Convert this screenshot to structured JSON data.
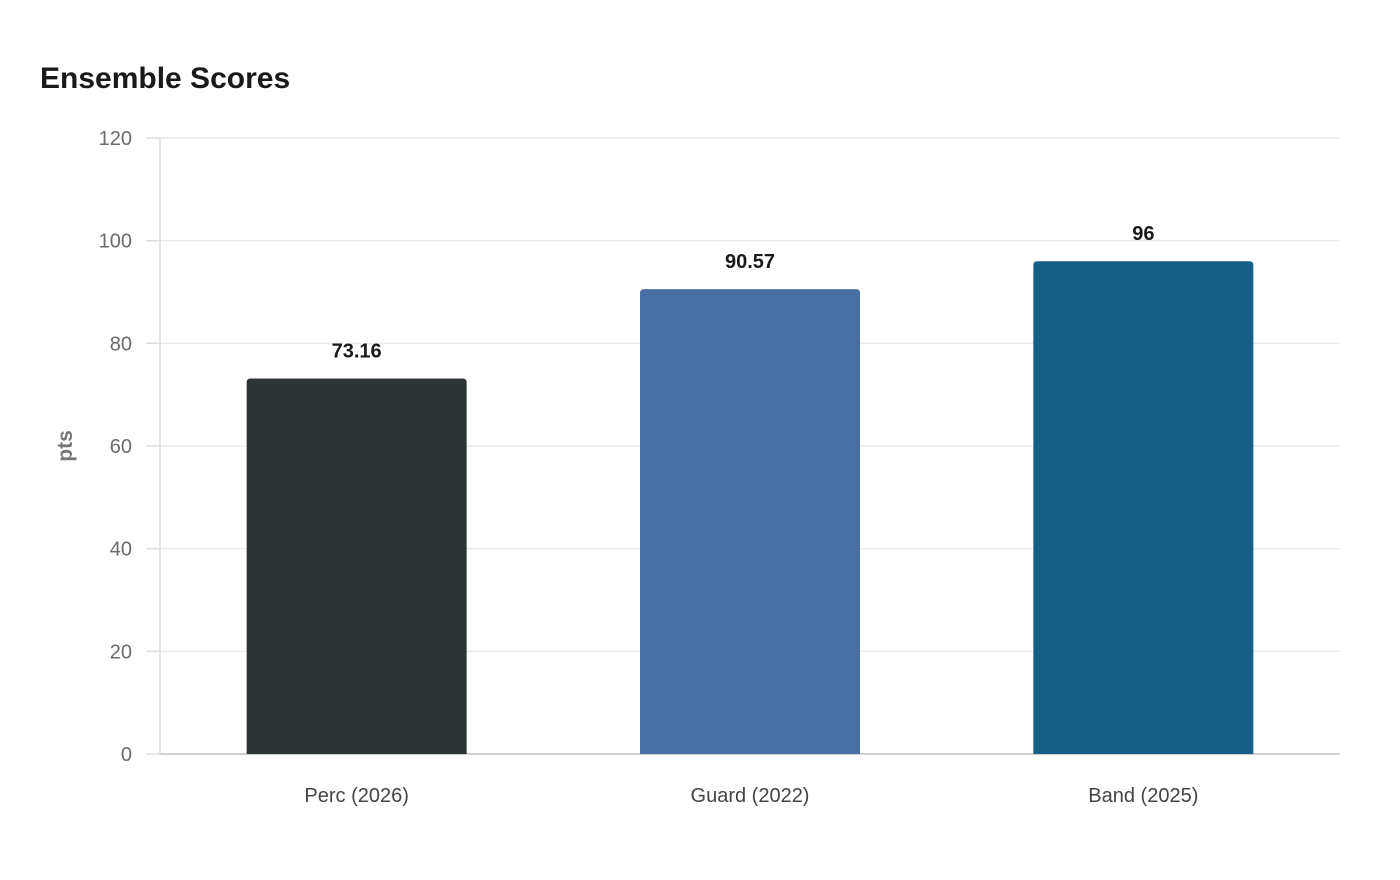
{
  "chart_data": {
    "type": "bar",
    "title": "Ensemble Scores",
    "xlabel": "",
    "ylabel": "pts",
    "ylim": [
      0,
      120
    ],
    "yticks": [
      0,
      20,
      40,
      60,
      80,
      100,
      120
    ],
    "grid": true,
    "legend": "none",
    "categories": [
      "Perc (2026)",
      "Guard (2022)",
      "Band (2025)"
    ],
    "values": [
      73.16,
      90.57,
      96
    ],
    "data_labels": [
      "73.16",
      "90.57",
      "96"
    ],
    "colors": [
      "#2d3436",
      "#4a6fa5",
      "#166088"
    ]
  }
}
